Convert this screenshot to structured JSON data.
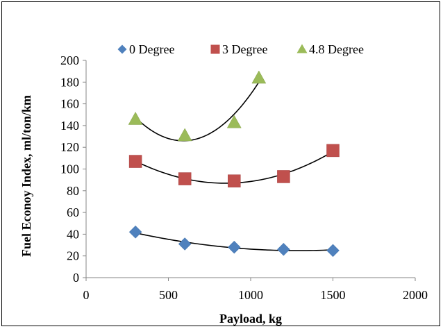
{
  "chart_data": {
    "type": "scatter",
    "xlabel": "Payload, kg",
    "ylabel": "Fuel Econoy Index, ml/ton/km",
    "xlim": [
      0,
      2000
    ],
    "ylim": [
      0,
      200
    ],
    "xticks": [
      "0",
      "500",
      "1000",
      "1500",
      "2000"
    ],
    "yticks": [
      "0",
      "20",
      "40",
      "60",
      "80",
      "100",
      "120",
      "140",
      "160",
      "180",
      "200"
    ],
    "grid": false,
    "legend_position": "top",
    "trendline": "polynomial order 2",
    "series": [
      {
        "name": "0 Degree",
        "marker": "diamond",
        "color": "#4F81BD",
        "points": [
          [
            300,
            42
          ],
          [
            600,
            31
          ],
          [
            900,
            28
          ],
          [
            1200,
            26
          ],
          [
            1500,
            25
          ]
        ]
      },
      {
        "name": "3 Degree",
        "marker": "square",
        "color": "#C0504D",
        "points": [
          [
            300,
            107
          ],
          [
            600,
            91
          ],
          [
            900,
            89
          ],
          [
            1200,
            93
          ],
          [
            1500,
            117
          ]
        ]
      },
      {
        "name": "4.8 Degree",
        "marker": "triangle",
        "color": "#9BBB59",
        "points": [
          [
            300,
            146
          ],
          [
            600,
            131
          ],
          [
            900,
            143
          ],
          [
            1050,
            184
          ]
        ]
      }
    ]
  }
}
